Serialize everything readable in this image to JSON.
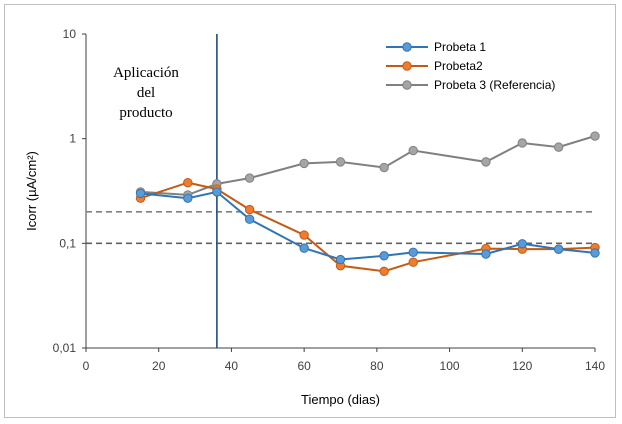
{
  "chart_data": {
    "type": "line",
    "xlabel": "Tiempo (dias)",
    "ylabel": "Icorr (µA/cm²)",
    "xlim": [
      0,
      140
    ],
    "ylim": [
      0.01,
      10
    ],
    "y_scale": "log",
    "x_ticks": [
      0,
      20,
      40,
      60,
      80,
      100,
      120,
      140
    ],
    "x_tick_labels": [
      "0",
      "20",
      "40",
      "60",
      "80",
      "100",
      "120",
      "140"
    ],
    "y_ticks": [
      0.01,
      0.1,
      1,
      10
    ],
    "y_tick_labels": [
      "0,01",
      "0,1",
      "1",
      "10"
    ],
    "grid": false,
    "legend_position": "top-right",
    "series": [
      {
        "name": "Probeta 1",
        "color": "#2e75b6",
        "marker_fill": "#5b9bd5",
        "x": [
          15,
          28,
          36,
          45,
          60,
          70,
          82,
          90,
          110,
          120,
          130,
          140
        ],
        "y": [
          0.3,
          0.27,
          0.31,
          0.17,
          0.09,
          0.07,
          0.076,
          0.082,
          0.079,
          0.099,
          0.088,
          0.081
        ]
      },
      {
        "name": "Probeta2",
        "color": "#c55a11",
        "marker_fill": "#ed7d31",
        "x": [
          15,
          28,
          36,
          45,
          60,
          70,
          82,
          90,
          110,
          120,
          130,
          140
        ],
        "y": [
          0.27,
          0.38,
          0.33,
          0.21,
          0.12,
          0.061,
          0.054,
          0.066,
          0.089,
          0.088,
          0.088,
          0.091
        ]
      },
      {
        "name": "Probeta 3 (Referencia)",
        "color": "#808080",
        "marker_fill": "#a5a5a5",
        "x": [
          15,
          28,
          36,
          45,
          60,
          70,
          82,
          90,
          110,
          120,
          130,
          140
        ],
        "y": [
          0.31,
          0.29,
          0.37,
          0.42,
          0.58,
          0.6,
          0.53,
          0.77,
          0.6,
          0.91,
          0.83,
          1.06
        ]
      }
    ],
    "reference_lines": [
      {
        "axis": "y",
        "value": 0.2,
        "style": "dashed",
        "color": "#808080"
      },
      {
        "axis": "y",
        "value": 0.1,
        "style": "dashed",
        "color": "#606060"
      },
      {
        "axis": "x",
        "value": 36,
        "style": "solid",
        "color": "#1f4e79"
      }
    ],
    "annotation": {
      "lines": [
        "Aplicación",
        "del",
        "producto"
      ]
    }
  }
}
